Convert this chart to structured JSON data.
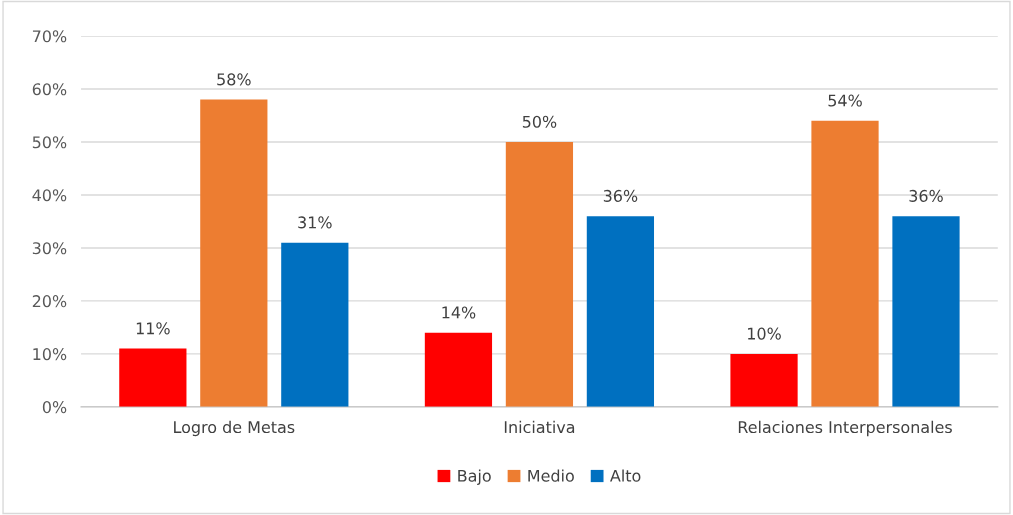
{
  "chart_data": {
    "type": "bar",
    "categories": [
      "Logro de Metas",
      "Iniciativa",
      "Relaciones Interpersonales"
    ],
    "series": [
      {
        "name": "Bajo",
        "color": "#ff0000",
        "values": [
          11,
          14,
          10
        ],
        "value_labels": [
          "11%",
          "14%",
          "10%"
        ]
      },
      {
        "name": "Medio",
        "color": "#ed7d31",
        "values": [
          58,
          50,
          54
        ],
        "value_labels": [
          "58%",
          "50%",
          "54%"
        ]
      },
      {
        "name": "Alto",
        "color": "#0070c0",
        "values": [
          31,
          36,
          36
        ],
        "value_labels": [
          "31%",
          "36%",
          "36%"
        ]
      }
    ],
    "ylim": [
      0,
      70
    ],
    "yticks": [
      {
        "value": 0,
        "label": "0%"
      },
      {
        "value": 10,
        "label": "10%"
      },
      {
        "value": 20,
        "label": "20%"
      },
      {
        "value": 30,
        "label": "30%"
      },
      {
        "value": 40,
        "label": "40%"
      },
      {
        "value": 50,
        "label": "50%"
      },
      {
        "value": 60,
        "label": "60%"
      },
      {
        "value": 70,
        "label": "70%"
      }
    ],
    "grid": "y",
    "legend": "bottom"
  }
}
